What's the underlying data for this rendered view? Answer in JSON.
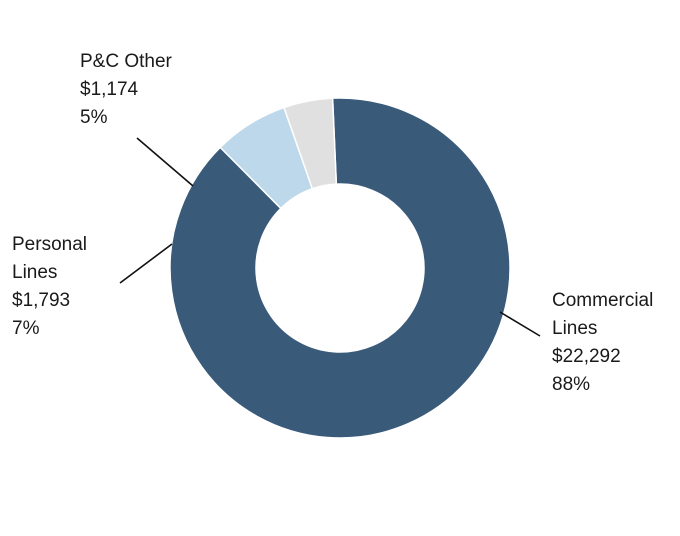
{
  "chart_data": {
    "type": "pie",
    "donut": true,
    "legend": "none",
    "slices": [
      {
        "name_lines": [
          "Commercial",
          "Lines"
        ],
        "value": 22292,
        "value_label": "$22,292",
        "percent_label": "88%",
        "color": "#3a5a7a"
      },
      {
        "name_lines": [
          "Personal",
          "Lines"
        ],
        "value": 1793,
        "value_label": "$1,793",
        "percent_label": "7%",
        "color": "#bcd8ea"
      },
      {
        "name_lines": [
          "P&C Other"
        ],
        "value": 1174,
        "value_label": "$1,174",
        "percent_label": "5%",
        "color": "#e0e0e0"
      }
    ]
  }
}
